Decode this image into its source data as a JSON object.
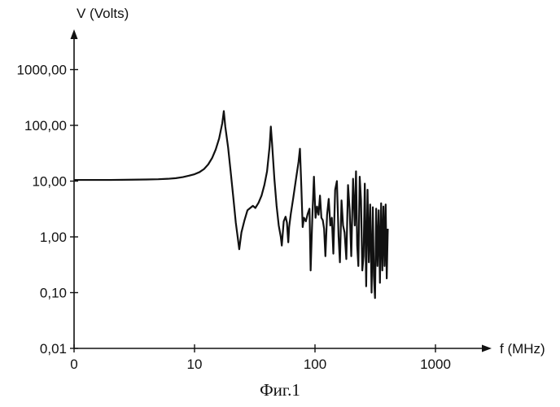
{
  "chart_data": {
    "type": "line",
    "title": "",
    "ylabel": "V (Volts)",
    "xlabel": "f (MHz)",
    "caption": "Фиг.1",
    "y_scale": "log",
    "x_scale": "log",
    "ylim": [
      0.01,
      10000
    ],
    "xlim": [
      1,
      10000
    ],
    "y_ticks": [
      {
        "value": 0.01,
        "label": "0,01"
      },
      {
        "value": 0.1,
        "label": "0,10"
      },
      {
        "value": 1,
        "label": "1,00"
      },
      {
        "value": 10,
        "label": "10,00"
      },
      {
        "value": 100,
        "label": "100,00"
      },
      {
        "value": 1000,
        "label": "1000,00"
      }
    ],
    "x_ticks": [
      {
        "value": 1,
        "label": "0"
      },
      {
        "value": 10,
        "label": "10"
      },
      {
        "value": 100,
        "label": "100"
      },
      {
        "value": 1000,
        "label": "1000"
      }
    ],
    "grid": false,
    "legend": "none",
    "line_color": "#111111",
    "series": [
      {
        "points": [
          [
            1.0,
            10.5
          ],
          [
            1.5,
            10.5
          ],
          [
            2.0,
            10.5
          ],
          [
            3.0,
            10.6
          ],
          [
            4.0,
            10.7
          ],
          [
            5.0,
            10.8
          ],
          [
            6.0,
            11.0
          ],
          [
            7.0,
            11.3
          ],
          [
            8.0,
            11.8
          ],
          [
            9.0,
            12.5
          ],
          [
            10.0,
            13.3
          ],
          [
            11.0,
            14.5
          ],
          [
            12.0,
            16.5
          ],
          [
            13.0,
            20.0
          ],
          [
            14.0,
            26.0
          ],
          [
            15.0,
            37.0
          ],
          [
            16.0,
            58.0
          ],
          [
            17.0,
            110.0
          ],
          [
            17.5,
            180.0
          ],
          [
            18.0,
            95.0
          ],
          [
            19.0,
            40.0
          ],
          [
            20.0,
            14.0
          ],
          [
            21.0,
            5.0
          ],
          [
            22.0,
            1.8
          ],
          [
            22.8,
            1.0
          ],
          [
            23.5,
            0.6
          ],
          [
            24.5,
            1.2
          ],
          [
            26.0,
            2.0
          ],
          [
            27.5,
            3.0
          ],
          [
            29.0,
            3.3
          ],
          [
            30.5,
            3.6
          ],
          [
            32.0,
            3.3
          ],
          [
            34.0,
            4.1
          ],
          [
            36.0,
            5.5
          ],
          [
            38.0,
            8.5
          ],
          [
            40.0,
            15.0
          ],
          [
            42.0,
            42.0
          ],
          [
            43.0,
            95.0
          ],
          [
            44.0,
            48.0
          ],
          [
            46.0,
            11.0
          ],
          [
            48.0,
            3.6
          ],
          [
            50.0,
            1.6
          ],
          [
            52.0,
            1.0
          ],
          [
            53.0,
            0.7
          ],
          [
            55.0,
            1.9
          ],
          [
            57.0,
            2.3
          ],
          [
            58.5,
            1.8
          ],
          [
            60.0,
            0.8
          ],
          [
            61.0,
            1.5
          ],
          [
            63.0,
            2.6
          ],
          [
            66.0,
            5.0
          ],
          [
            70.0,
            12.0
          ],
          [
            73.0,
            22.0
          ],
          [
            75.0,
            38.0
          ],
          [
            77.0,
            8.0
          ],
          [
            79.0,
            1.5
          ],
          [
            81.0,
            2.2
          ],
          [
            84.0,
            1.9
          ],
          [
            87.0,
            2.6
          ],
          [
            90.0,
            3.2
          ],
          [
            92.0,
            0.25
          ],
          [
            95.0,
            2.2
          ],
          [
            98.0,
            12.0
          ],
          [
            101.0,
            2.2
          ],
          [
            104.0,
            3.5
          ],
          [
            107.0,
            2.5
          ],
          [
            110.0,
            5.5
          ],
          [
            113.0,
            2.2
          ],
          [
            116.0,
            2.0
          ],
          [
            119.0,
            1.4
          ],
          [
            122.0,
            0.45
          ],
          [
            126.0,
            2.5
          ],
          [
            130.0,
            4.8
          ],
          [
            134.0,
            1.6
          ],
          [
            138.0,
            2.2
          ],
          [
            142.0,
            0.5
          ],
          [
            147.0,
            7.0
          ],
          [
            152.0,
            10.0
          ],
          [
            157.0,
            1.0
          ],
          [
            161.0,
            0.35
          ],
          [
            166.0,
            4.5
          ],
          [
            171.0,
            1.6
          ],
          [
            176.0,
            1.2
          ],
          [
            182.0,
            0.4
          ],
          [
            188.0,
            8.5
          ],
          [
            194.0,
            3.0
          ],
          [
            200.0,
            0.45
          ],
          [
            207.0,
            11.0
          ],
          [
            214.0,
            1.6
          ],
          [
            219.0,
            15.0
          ],
          [
            224.0,
            0.7
          ],
          [
            229.0,
            0.3
          ],
          [
            235.0,
            12.0
          ],
          [
            241.0,
            4.5
          ],
          [
            247.0,
            0.25
          ],
          [
            253.0,
            0.45
          ],
          [
            259.0,
            9.0
          ],
          [
            266.0,
            0.13
          ],
          [
            273.0,
            7.0
          ],
          [
            280.0,
            0.35
          ],
          [
            287.0,
            3.8
          ],
          [
            295.0,
            0.1
          ],
          [
            302.0,
            3.4
          ],
          [
            308.0,
            0.2
          ],
          [
            315.0,
            0.08
          ],
          [
            322.0,
            3.2
          ],
          [
            330.0,
            0.3
          ],
          [
            338.0,
            3.0
          ],
          [
            346.0,
            0.15
          ],
          [
            354.0,
            4.0
          ],
          [
            362.0,
            0.25
          ],
          [
            370.0,
            3.5
          ],
          [
            378.0,
            0.3
          ],
          [
            386.0,
            3.8
          ],
          [
            394.0,
            0.18
          ],
          [
            402.0,
            1.4
          ]
        ]
      }
    ]
  }
}
